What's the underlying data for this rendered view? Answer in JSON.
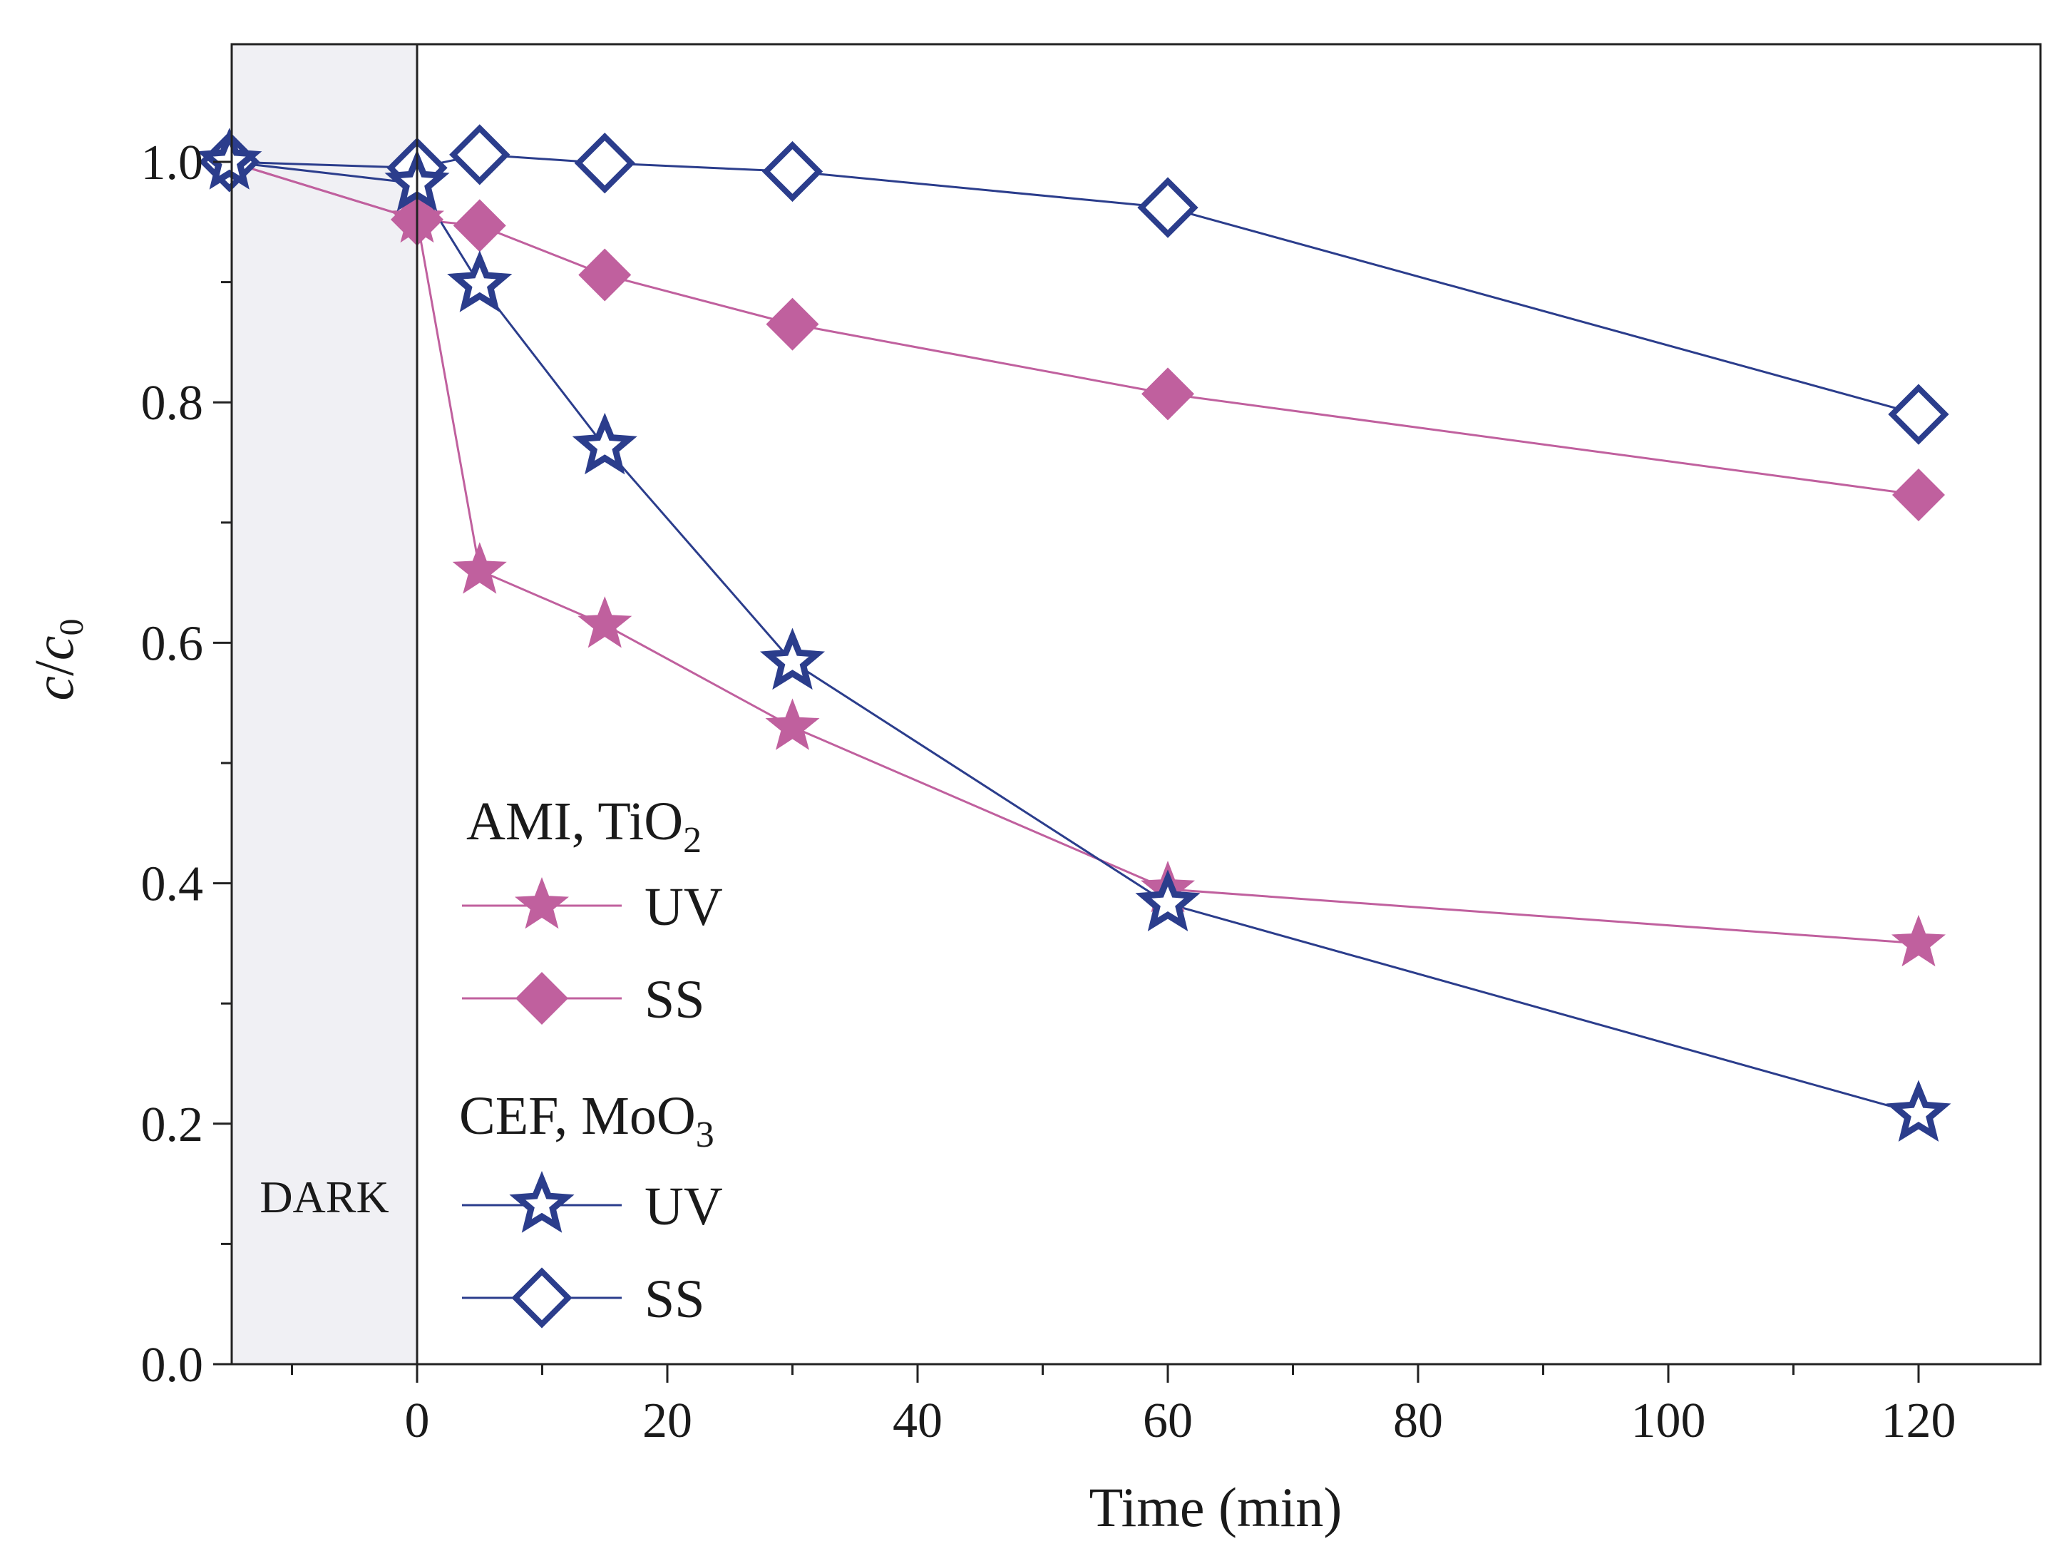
{
  "colors": {
    "pink": "#c0609e",
    "blue": "#2b3d8c",
    "dark_region": "#f0f0f4",
    "axis": "#222222"
  },
  "chart_data": {
    "type": "line",
    "xlabel": "Time (min)",
    "ylabel_main": "c",
    "ylabel_sub_main": "c",
    "ylabel_sub_script": "0",
    "xlim": [
      -15,
      130
    ],
    "ylim": [
      0.0,
      1.1
    ],
    "x_ticks": [
      0,
      20,
      40,
      60,
      80,
      100,
      120
    ],
    "x_tick_labels": [
      "0",
      "20",
      "40",
      "60",
      "80",
      "100",
      "120"
    ],
    "x_minor_ticks": [
      -10,
      10,
      30,
      50,
      70,
      90,
      110
    ],
    "y_ticks": [
      0.0,
      0.2,
      0.4,
      0.6,
      0.8,
      1.0
    ],
    "y_tick_labels": [
      "0.0",
      "0.2",
      "0.4",
      "0.6",
      "0.8",
      "1.0"
    ],
    "y_minor_ticks": [
      0.1,
      0.3,
      0.5,
      0.7,
      0.9
    ],
    "dark_region": {
      "label": "DARK",
      "x_start": -15,
      "x_end": 0
    },
    "legend": {
      "groups": [
        {
          "title_main": "AMI, TiO",
          "title_sub": "2",
          "entries": [
            {
              "label": "UV",
              "series": 0
            },
            {
              "label": "SS",
              "series": 1
            }
          ]
        },
        {
          "title_main": "CEF, MoO",
          "title_sub": "3",
          "entries": [
            {
              "label": "UV",
              "series": 2
            },
            {
              "label": "SS",
              "series": 3
            }
          ]
        }
      ]
    },
    "series": [
      {
        "name": "AMI, TiO2 UV",
        "color": "#c0609e",
        "marker": "star",
        "filled": true,
        "x": [
          -15,
          0,
          5,
          15,
          30,
          60,
          120
        ],
        "y": [
          1.0,
          0.952,
          0.66,
          0.615,
          0.53,
          0.395,
          0.35
        ]
      },
      {
        "name": "AMI, TiO2 SS",
        "color": "#c0609e",
        "marker": "diamond",
        "filled": true,
        "x": [
          -15,
          0,
          5,
          15,
          30,
          60,
          120
        ],
        "y": [
          1.0,
          0.952,
          0.947,
          0.906,
          0.865,
          0.807,
          0.723
        ]
      },
      {
        "name": "CEF, MoO3 UV",
        "color": "#2b3d8c",
        "marker": "star",
        "filled": false,
        "x": [
          -15,
          0,
          5,
          15,
          30,
          60,
          120
        ],
        "y": [
          1.0,
          0.982,
          0.898,
          0.763,
          0.584,
          0.383,
          0.208
        ]
      },
      {
        "name": "CEF, MoO3 SS",
        "color": "#2b3d8c",
        "marker": "diamond",
        "filled": false,
        "x": [
          -15,
          0,
          5,
          15,
          30,
          60,
          120
        ],
        "y": [
          1.0,
          0.995,
          1.006,
          0.999,
          0.992,
          0.962,
          0.79
        ]
      }
    ]
  }
}
